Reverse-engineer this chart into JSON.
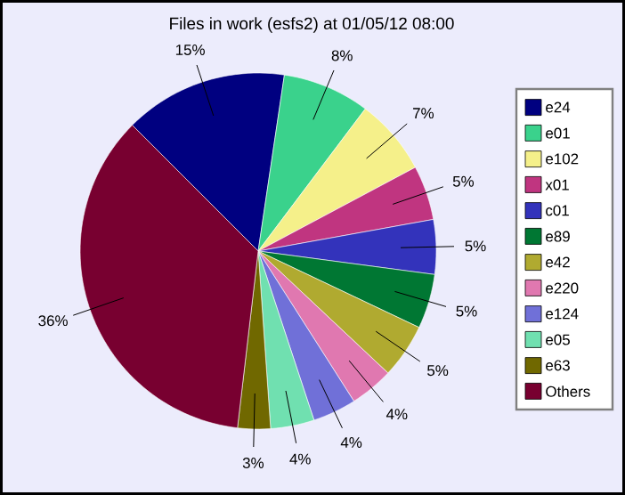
{
  "chart_data": {
    "type": "pie",
    "title": "Files in work (esfs2) at 01/05/12 08:00",
    "categories": [
      "e24",
      "e01",
      "e102",
      "x01",
      "c01",
      "e89",
      "e42",
      "e220",
      "e124",
      "e05",
      "e63",
      "Others"
    ],
    "values": [
      15,
      8,
      7,
      5,
      5,
      5,
      5,
      4,
      4,
      4,
      3,
      36
    ],
    "colors": [
      "#000080",
      "#3ad28c",
      "#f5f08a",
      "#c03580",
      "#3333bb",
      "#007733",
      "#b0aa30",
      "#e078b0",
      "#7070d8",
      "#70e0b0",
      "#706800",
      "#780030"
    ],
    "value_labels": [
      "15%",
      "8%",
      "7%",
      "5%",
      "5%",
      "5%",
      "5%",
      "4%",
      "4%",
      "4%",
      "3%",
      "36%"
    ],
    "legend": "right"
  }
}
